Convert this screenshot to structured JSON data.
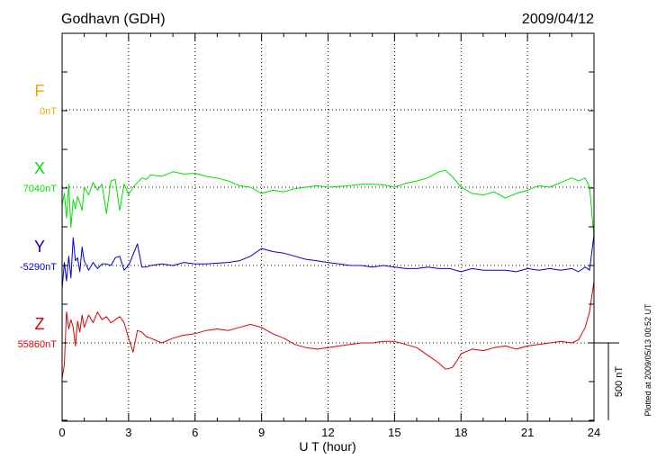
{
  "header": {
    "station": "Godhavn (GDH)",
    "date": "2009/04/12"
  },
  "footer": {
    "plotted_note": "Plotted at 2009/05/13 00:52 UT"
  },
  "chart_data": {
    "type": "line",
    "xlabel": "U T (hour)",
    "xlim": [
      0,
      24
    ],
    "xticks": [
      0,
      3,
      6,
      9,
      12,
      15,
      18,
      21,
      24
    ],
    "scale_bar": {
      "label": "500 nT",
      "value_nT": 500
    },
    "grid": true,
    "series": [
      {
        "name": "F",
        "baseline_label": "0nT",
        "color": "#f0a800",
        "baseline_level": 3,
        "x": [],
        "y": []
      },
      {
        "name": "X",
        "baseline_label": "7040nT",
        "color": "#00e000",
        "baseline_level": 2,
        "x": [
          0,
          0.1,
          0.2,
          0.3,
          0.4,
          0.5,
          0.6,
          0.7,
          0.8,
          0.9,
          1.0,
          1.2,
          1.4,
          1.6,
          1.8,
          2.0,
          2.2,
          2.4,
          2.6,
          2.8,
          3.0,
          3.2,
          3.4,
          3.6,
          3.8,
          4.0,
          4.5,
          5.0,
          5.5,
          6.0,
          6.5,
          7.0,
          7.5,
          8.0,
          8.5,
          9.0,
          9.5,
          10.0,
          10.5,
          11.0,
          11.5,
          12.0,
          12.5,
          13.0,
          13.5,
          14.0,
          14.5,
          15.0,
          15.5,
          16.0,
          16.5,
          17.0,
          17.3,
          17.6,
          18.0,
          18.5,
          19.0,
          19.5,
          20.0,
          20.5,
          21.0,
          21.5,
          22.0,
          22.5,
          23.0,
          23.3,
          23.6,
          23.8,
          24.0
        ],
        "y": [
          -120,
          -40,
          -200,
          20,
          -260,
          -80,
          -140,
          -60,
          -100,
          -150,
          0,
          -50,
          30,
          -20,
          20,
          -170,
          40,
          50,
          -150,
          20,
          -50,
          0,
          30,
          60,
          50,
          80,
          70,
          100,
          85,
          90,
          70,
          60,
          40,
          10,
          0,
          -40,
          -20,
          -30,
          -10,
          0,
          10,
          0,
          5,
          10,
          20,
          20,
          15,
          0,
          25,
          40,
          60,
          100,
          110,
          70,
          0,
          -40,
          -50,
          -30,
          -70,
          -40,
          -20,
          10,
          0,
          30,
          60,
          40,
          60,
          0,
          -320
        ]
      },
      {
        "name": "Y",
        "baseline_label": "-5290nT",
        "color": "#0000e0",
        "baseline_level": 1,
        "x": [
          0,
          0.1,
          0.2,
          0.3,
          0.4,
          0.5,
          0.6,
          0.7,
          0.8,
          0.9,
          1.0,
          1.2,
          1.4,
          1.6,
          1.8,
          2.0,
          2.2,
          2.4,
          2.6,
          2.8,
          3.0,
          3.2,
          3.4,
          3.6,
          3.8,
          4.0,
          4.5,
          5.0,
          5.5,
          6.0,
          6.5,
          7.0,
          7.5,
          8.0,
          8.5,
          9.0,
          9.5,
          10.0,
          10.5,
          11.0,
          11.5,
          12.0,
          12.5,
          13.0,
          13.5,
          14.0,
          14.5,
          15.0,
          15.5,
          16.0,
          16.5,
          17.0,
          17.5,
          18.0,
          18.5,
          19.0,
          19.5,
          20.0,
          20.5,
          21.0,
          21.5,
          22.0,
          22.5,
          23.0,
          23.3,
          23.6,
          23.8,
          24.0
        ],
        "y": [
          -150,
          20,
          -100,
          60,
          -80,
          180,
          30,
          50,
          -40,
          120,
          30,
          -30,
          20,
          -20,
          10,
          10,
          0,
          50,
          60,
          -30,
          0,
          70,
          140,
          -10,
          -10,
          0,
          10,
          0,
          20,
          10,
          10,
          15,
          20,
          30,
          60,
          110,
          90,
          80,
          60,
          40,
          30,
          20,
          10,
          0,
          0,
          -10,
          0,
          -10,
          -20,
          -20,
          -10,
          -20,
          -20,
          -40,
          -20,
          -30,
          -30,
          -30,
          -40,
          -20,
          -30,
          -20,
          -30,
          -20,
          -40,
          -10,
          -30,
          200
        ]
      },
      {
        "name": "Z",
        "baseline_label": "55860nT",
        "color": "#e00000",
        "baseline_level": 0,
        "x": [
          0,
          0.1,
          0.2,
          0.3,
          0.4,
          0.5,
          0.6,
          0.7,
          0.8,
          0.9,
          1.0,
          1.2,
          1.4,
          1.6,
          1.8,
          2.0,
          2.2,
          2.4,
          2.6,
          2.8,
          3.0,
          3.2,
          3.4,
          3.6,
          3.8,
          4.0,
          4.5,
          5.0,
          5.5,
          6.0,
          6.5,
          7.0,
          7.5,
          8.0,
          8.5,
          9.0,
          9.5,
          10.0,
          10.5,
          11.0,
          11.5,
          12.0,
          12.5,
          13.0,
          13.5,
          14.0,
          14.5,
          15.0,
          15.5,
          16.0,
          16.5,
          17.0,
          17.3,
          17.6,
          17.8,
          18.0,
          18.5,
          19.0,
          19.5,
          20.0,
          20.5,
          21.0,
          21.5,
          22.0,
          22.5,
          23.0,
          23.3,
          23.6,
          23.8,
          24.0
        ],
        "y": [
          -230,
          -140,
          200,
          90,
          150,
          100,
          -20,
          140,
          70,
          180,
          100,
          180,
          130,
          200,
          150,
          170,
          130,
          150,
          170,
          130,
          30,
          -60,
          80,
          70,
          40,
          30,
          0,
          30,
          50,
          60,
          80,
          90,
          80,
          100,
          120,
          100,
          60,
          30,
          -10,
          -30,
          -40,
          -30,
          -20,
          -10,
          0,
          0,
          10,
          10,
          -10,
          -30,
          -80,
          -130,
          -170,
          -160,
          -120,
          -70,
          -40,
          -50,
          -30,
          -20,
          -40,
          -20,
          -10,
          0,
          10,
          0,
          20,
          100,
          200,
          400
        ]
      }
    ]
  }
}
